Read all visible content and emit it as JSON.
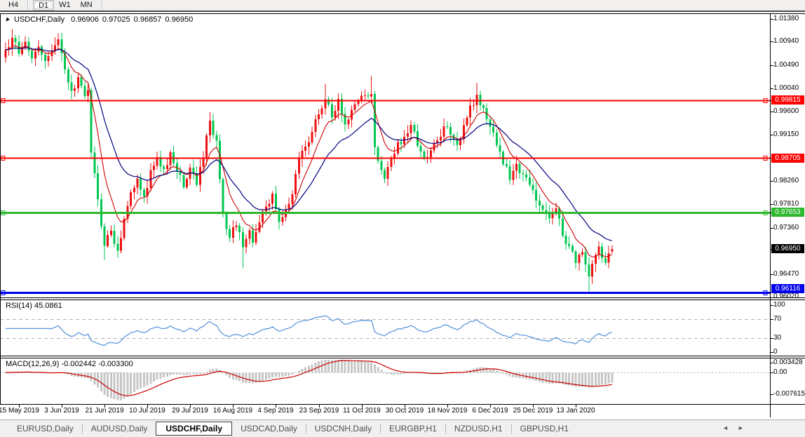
{
  "colors": {
    "candle_up": "#ee1111",
    "candle_down": "#00c750",
    "ma_fast": "#cc0000",
    "ma_slow": "#000080",
    "rsi_line": "#4287d6",
    "rsi_level": "#b3b3b3",
    "macd_hist": "#c6c6c6",
    "macd_signal": "#cc0000",
    "level_red": "#ff0000",
    "level_green": "#2eb82e",
    "level_blue": "#0000ee",
    "badge_current_bg": "#000000"
  },
  "toolbar": {
    "buttons": [
      {
        "label": "H4",
        "active": false
      },
      {
        "label": "D1",
        "active": true
      },
      {
        "label": "W1",
        "active": false
      },
      {
        "label": "MN",
        "active": false
      }
    ]
  },
  "chart": {
    "title": {
      "symbol": "USDCHF,Daily",
      "open": "0.96906",
      "high": "0.97025",
      "low": "0.96857",
      "close": "0.96950"
    },
    "price_axis": {
      "ticks": [
        "1.01380",
        "1.00940",
        "1.00490",
        "1.00040",
        "0.99600",
        "0.99150",
        "0.98260",
        "0.97810",
        "0.97360",
        "0.96470",
        "0.96020"
      ],
      "badges": [
        {
          "label": "0.99815",
          "price": 0.99815,
          "bg": "#ff0000"
        },
        {
          "label": "0.98705",
          "price": 0.98705,
          "bg": "#ff0000"
        },
        {
          "label": "0.97653",
          "price": 0.97653,
          "bg": "#2eb82e"
        },
        {
          "label": "0.96950",
          "price": 0.9695,
          "bg": "#000000"
        },
        {
          "label": "0.96116",
          "price": 0.96116,
          "bg": "#0000ee"
        }
      ]
    },
    "date_axis": [
      "15 May 2019",
      "3 Jun 2019",
      "21 Jun 2019",
      "10 Jul 2019",
      "29 Jul 2019",
      "16 Aug 2019",
      "4 Sep 2019",
      "23 Sep 2019",
      "11 Oct 2019",
      "30 Oct 2019",
      "18 Nov 2019",
      "6 Dec 2019",
      "25 Dec 2019",
      "13 Jan 2020"
    ]
  },
  "rsi": {
    "label": "RSI(14) 45.0861",
    "value": 45.0861,
    "ticks": [
      {
        "label": "100",
        "value": 100
      },
      {
        "label": "70",
        "value": 70
      },
      {
        "label": "30",
        "value": 30
      },
      {
        "label": "0",
        "value": 0
      }
    ],
    "levels": [
      70,
      30
    ]
  },
  "macd": {
    "label": "MACD(12,26,9) -0.002442 -0.003300",
    "macd_value": -0.002442,
    "signal_value": -0.0033,
    "ticks": [
      {
        "label": "0.003428",
        "value": 0.003428
      },
      {
        "label": "0.00",
        "value": 0
      },
      {
        "label": "-0.007615",
        "value": -0.007615
      }
    ]
  },
  "tabs": {
    "items": [
      {
        "label": "EURUSD,Daily",
        "active": false
      },
      {
        "label": "AUDUSD,Daily",
        "active": false
      },
      {
        "label": "USDCHF,Daily",
        "active": true
      },
      {
        "label": "USDCAD,Daily",
        "active": false
      },
      {
        "label": "USDCNH,Daily",
        "active": false
      },
      {
        "label": "EURGBP,H1",
        "active": false
      },
      {
        "label": "NZDUSD,H1",
        "active": false
      },
      {
        "label": "GBPUSD,H1",
        "active": false
      }
    ]
  },
  "tab_arrows": {
    "left": "◄",
    "right": "►"
  },
  "chart_data": {
    "type": "candlestick",
    "symbol": "USDCHF",
    "timeframe": "Daily",
    "title": "USDCHF,Daily 0.96906 0.97025 0.96857 0.96950",
    "y_axis_range": [
      0.9602,
      1.0138
    ],
    "bars": 185,
    "last_candle": {
      "open": 0.96906,
      "high": 0.97025,
      "low": 0.96857,
      "close": 0.9695
    },
    "hlines": [
      {
        "price": 0.99815,
        "color": "#ff0000",
        "width": 2
      },
      {
        "price": 0.98705,
        "color": "#ff0000",
        "width": 2
      },
      {
        "price": 0.97653,
        "color": "#2eb82e",
        "width": 3
      },
      {
        "price": 0.96116,
        "color": "#0000ee",
        "width": 3
      }
    ],
    "price_path": [
      [
        0,
        1.0078
      ],
      [
        2,
        1.0102
      ],
      [
        4,
        1.007
      ],
      [
        6,
        1.0095
      ],
      [
        8,
        1.006
      ],
      [
        10,
        1.0085
      ],
      [
        12,
        1.0055
      ],
      [
        14,
        1.0078
      ],
      [
        16,
        1.0098
      ],
      [
        18,
        1.004
      ],
      [
        20,
        1.0
      ],
      [
        22,
        1.0025
      ],
      [
        24,
        0.999
      ],
      [
        25,
        1.0
      ],
      [
        26,
        0.988
      ],
      [
        28,
        0.979
      ],
      [
        30,
        0.97
      ],
      [
        32,
        0.973
      ],
      [
        34,
        0.969
      ],
      [
        36,
        0.9755
      ],
      [
        38,
        0.9805
      ],
      [
        40,
        0.983
      ],
      [
        42,
        0.9795
      ],
      [
        44,
        0.9845
      ],
      [
        46,
        0.9872
      ],
      [
        48,
        0.985
      ],
      [
        50,
        0.9882
      ],
      [
        52,
        0.9845
      ],
      [
        54,
        0.9815
      ],
      [
        56,
        0.985
      ],
      [
        58,
        0.982
      ],
      [
        60,
        0.987
      ],
      [
        62,
        0.994
      ],
      [
        64,
        0.9905
      ],
      [
        65,
        0.983
      ],
      [
        66,
        0.9762
      ],
      [
        68,
        0.9718
      ],
      [
        70,
        0.974
      ],
      [
        72,
        0.9698
      ],
      [
        74,
        0.973
      ],
      [
        75,
        0.9705
      ],
      [
        77,
        0.9745
      ],
      [
        79,
        0.9778
      ],
      [
        81,
        0.98
      ],
      [
        83,
        0.9748
      ],
      [
        85,
        0.977
      ],
      [
        87,
        0.98
      ],
      [
        89,
        0.987
      ],
      [
        91,
        0.989
      ],
      [
        93,
        0.992
      ],
      [
        95,
        0.9955
      ],
      [
        97,
        0.9985
      ],
      [
        99,
        0.995
      ],
      [
        101,
        0.9985
      ],
      [
        103,
        0.9935
      ],
      [
        105,
        0.9965
      ],
      [
        107,
        0.998
      ],
      [
        109,
        0.9992
      ],
      [
        111,
        0.9995
      ],
      [
        112,
        0.989
      ],
      [
        114,
        0.9845
      ],
      [
        115,
        0.9832
      ],
      [
        117,
        0.987
      ],
      [
        119,
        0.99
      ],
      [
        121,
        0.991
      ],
      [
        123,
        0.9935
      ],
      [
        125,
        0.9895
      ],
      [
        127,
        0.987
      ],
      [
        129,
        0.9885
      ],
      [
        131,
        0.9905
      ],
      [
        133,
        0.993
      ],
      [
        135,
        0.9915
      ],
      [
        137,
        0.9895
      ],
      [
        139,
        0.9935
      ],
      [
        141,
        0.997
      ],
      [
        143,
        0.999
      ],
      [
        145,
        0.9965
      ],
      [
        147,
        0.993
      ],
      [
        149,
        0.9895
      ],
      [
        151,
        0.986
      ],
      [
        153,
        0.983
      ],
      [
        155,
        0.986
      ],
      [
        157,
        0.984
      ],
      [
        159,
        0.982
      ],
      [
        161,
        0.979
      ],
      [
        163,
        0.977
      ],
      [
        165,
        0.9755
      ],
      [
        167,
        0.9775
      ],
      [
        169,
        0.972
      ],
      [
        171,
        0.97
      ],
      [
        173,
        0.967
      ],
      [
        175,
        0.969
      ],
      [
        177,
        0.964
      ],
      [
        178,
        0.9665
      ],
      [
        180,
        0.97
      ],
      [
        182,
        0.9668
      ],
      [
        184,
        0.9695
      ]
    ],
    "wick_overrides": [
      {
        "bar": 2,
        "high": 1.0118
      },
      {
        "bar": 16,
        "high": 1.011
      },
      {
        "bar": 30,
        "low": 0.9674
      },
      {
        "bar": 34,
        "low": 0.9678
      },
      {
        "bar": 62,
        "high": 0.9958
      },
      {
        "bar": 72,
        "low": 0.9658
      },
      {
        "bar": 97,
        "high": 1.0013
      },
      {
        "bar": 111,
        "high": 1.0028
      },
      {
        "bar": 143,
        "high": 1.0015
      },
      {
        "bar": 177,
        "low": 0.9613
      }
    ],
    "indicators": [
      {
        "name": "MA fast",
        "type": "ema",
        "period": 8,
        "color": "#cc0000"
      },
      {
        "name": "MA slow",
        "type": "ema",
        "period": 21,
        "color": "#000080"
      },
      {
        "name": "RSI",
        "period": 14,
        "last": 45.0861
      },
      {
        "name": "MACD",
        "fast": 12,
        "slow": 26,
        "signal": 9,
        "macd": -0.002442,
        "signal_value": -0.0033
      }
    ]
  }
}
